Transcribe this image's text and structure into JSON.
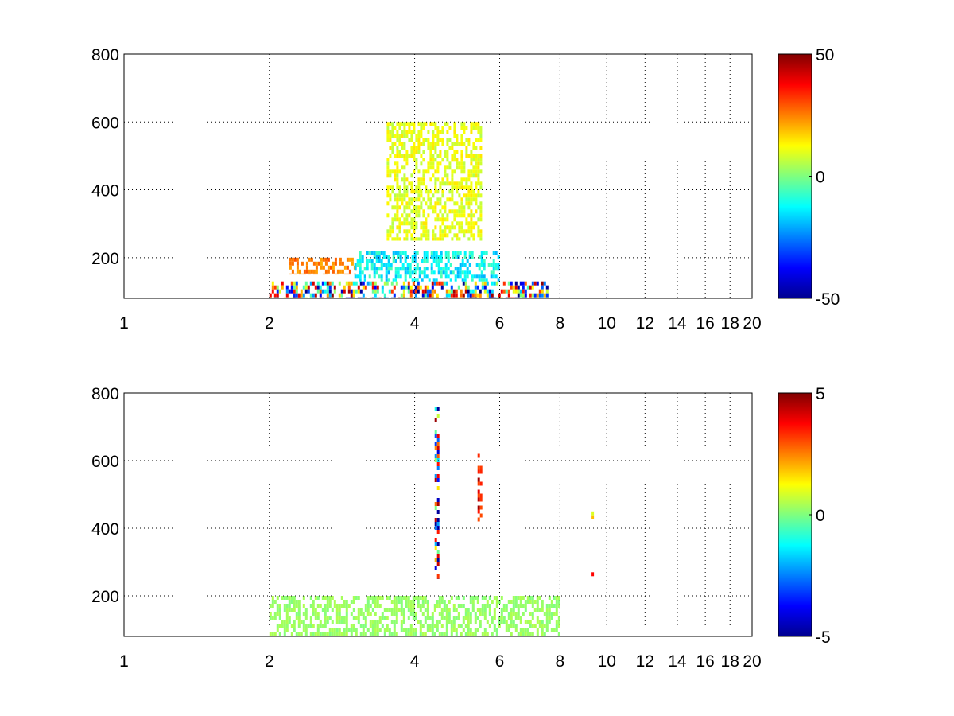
{
  "chart_data": [
    {
      "type": "heatmap",
      "title": "",
      "xlabel": "",
      "ylabel": "",
      "x_scale": "log",
      "xlim": [
        1,
        20
      ],
      "ylim": [
        80,
        800
      ],
      "x_ticks": [
        1,
        2,
        4,
        6,
        8,
        10,
        12,
        14,
        16,
        18,
        20
      ],
      "x_tick_labels": [
        "1",
        "2",
        "4",
        "6",
        "8",
        "10",
        "12",
        "14",
        "16",
        "18",
        "20"
      ],
      "y_ticks": [
        200,
        400,
        600,
        800
      ],
      "y_tick_labels": [
        "200",
        "400",
        "600",
        "800"
      ],
      "grid": true,
      "colormap": "jet",
      "clim": [
        -50,
        50
      ],
      "colorbar_ticks": [
        50,
        0,
        -50
      ],
      "colorbar_tick_labels": [
        "50",
        "0",
        "-50"
      ],
      "approximate_features": [
        {
          "x_range": [
            2,
            7.5
          ],
          "y_range": [
            80,
            130
          ],
          "value_range": [
            -50,
            50
          ]
        },
        {
          "x_range": [
            2.2,
            3
          ],
          "y_range": [
            150,
            200
          ],
          "value_range": [
            20,
            30
          ]
        },
        {
          "x_range": [
            3,
            6
          ],
          "y_range": [
            130,
            220
          ],
          "value_range": [
            -20,
            -5
          ]
        },
        {
          "x_range": [
            3.5,
            5.5
          ],
          "y_range": [
            250,
            600
          ],
          "value_range": [
            5,
            15
          ]
        }
      ]
    },
    {
      "type": "heatmap",
      "title": "",
      "xlabel": "",
      "ylabel": "",
      "x_scale": "log",
      "xlim": [
        1,
        20
      ],
      "ylim": [
        80,
        800
      ],
      "x_ticks": [
        1,
        2,
        4,
        6,
        8,
        10,
        12,
        14,
        16,
        18,
        20
      ],
      "x_tick_labels": [
        "1",
        "2",
        "4",
        "6",
        "8",
        "10",
        "12",
        "14",
        "16",
        "18",
        "20"
      ],
      "y_ticks": [
        200,
        400,
        600,
        800
      ],
      "y_tick_labels": [
        "200",
        "400",
        "600",
        "800"
      ],
      "grid": true,
      "colormap": "jet",
      "clim": [
        -5,
        5
      ],
      "colorbar_ticks": [
        5,
        0,
        -5
      ],
      "colorbar_tick_labels": [
        "5",
        "0",
        "-5"
      ],
      "approximate_features": [
        {
          "x_range": [
            2,
            8
          ],
          "y_range": [
            80,
            200
          ],
          "value_range": [
            0,
            0.5
          ]
        },
        {
          "x_range": [
            4.4,
            4.5
          ],
          "y_range": [
            250,
            760
          ],
          "value_range": [
            -5,
            5
          ]
        },
        {
          "x_range": [
            5.4,
            5.5
          ],
          "y_range": [
            420,
            620
          ],
          "value_range": [
            3,
            5
          ]
        },
        {
          "x_range": [
            9.3,
            9.4
          ],
          "y_range": [
            420,
            450
          ],
          "value_range": [
            -2,
            2
          ]
        },
        {
          "x_range": [
            9.3,
            9.4
          ],
          "y_range": [
            255,
            270
          ],
          "value_range": [
            3,
            4
          ]
        }
      ]
    }
  ]
}
